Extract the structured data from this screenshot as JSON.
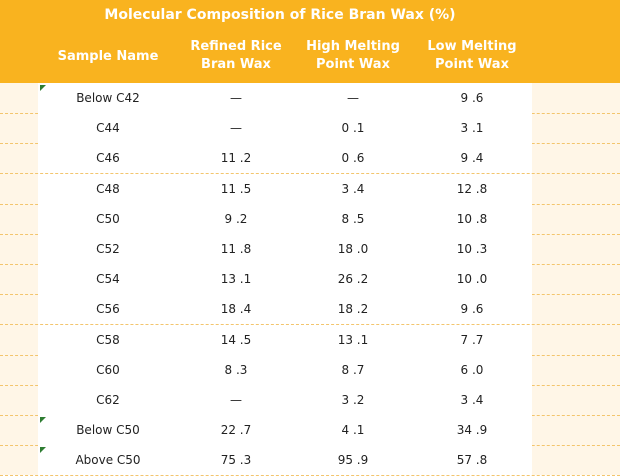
{
  "table": {
    "title": "Molecular Composition of Rice Bran Wax (%)",
    "headers": {
      "sample": "Sample Name",
      "refined_line1": "Refined Rice",
      "refined_line2": "Bran Wax",
      "high_line1": "High Melting",
      "high_line2": "Point Wax",
      "low_line1": "Low Melting",
      "low_line2": "Point Wax"
    },
    "rows": [
      {
        "name": "Below C42",
        "refined": "—",
        "high": "—",
        "low": "9 .6"
      },
      {
        "name": "C44",
        "refined": "—",
        "high": "0 .1",
        "low": "3 .1"
      },
      {
        "name": "C46",
        "refined": "11 .2",
        "high": "0 .6",
        "low": "9 .4"
      },
      {
        "name": "C48",
        "refined": "11 .5",
        "high": "3 .4",
        "low": "12 .8"
      },
      {
        "name": "C50",
        "refined": "9 .2",
        "high": "8 .5",
        "low": "10 .8"
      },
      {
        "name": "C52",
        "refined": "11 .8",
        "high": "18 .0",
        "low": "10 .3"
      },
      {
        "name": "C54",
        "refined": "13 .1",
        "high": "26 .2",
        "low": "10 .0"
      },
      {
        "name": "C56",
        "refined": "18 .4",
        "high": "18 .2",
        "low": "9 .6"
      },
      {
        "name": "C58",
        "refined": "14 .5",
        "high": "13 .1",
        "low": "7 .7"
      },
      {
        "name": "C60",
        "refined": "8 .3",
        "high": "8 .7",
        "low": "6 .0"
      },
      {
        "name": "C62",
        "refined": "—",
        "high": "3 .2",
        "low": "3 .4"
      },
      {
        "name": "Below C50",
        "refined": "22 .7",
        "high": "4 .1",
        "low": "34 .9"
      },
      {
        "name": "Above C50",
        "refined": "75 .3",
        "high": "95 .9",
        "low": "57 .8"
      }
    ]
  }
}
